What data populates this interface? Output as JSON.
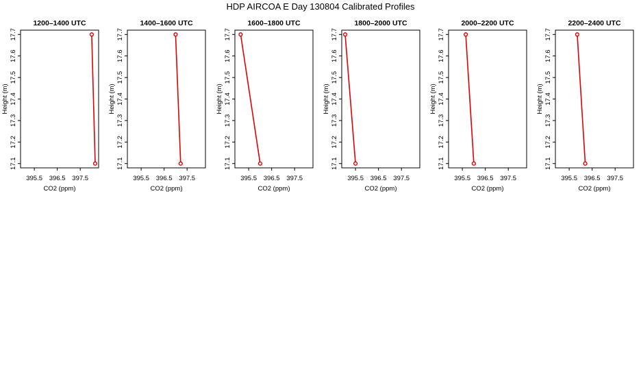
{
  "figure": {
    "title": "HDP AIRCOA E  Day 130804  Calibrated Profiles"
  },
  "chart_data": [
    {
      "type": "line",
      "title": "1200–1400 UTC",
      "xlabel": "CO2 (ppm)",
      "ylabel": "Height (m)",
      "xlim": [
        394.9,
        398.3
      ],
      "ylim": [
        17.08,
        17.72
      ],
      "xticks": [
        "395.5",
        "396.5",
        "397.5"
      ],
      "yticks": [
        "17.1",
        "17.2",
        "17.3",
        "17.4",
        "17.5",
        "17.6",
        "17.7"
      ],
      "series": [
        {
          "color": "#e00000",
          "points": [
            {
              "x": 398.0,
              "y": 17.7
            },
            {
              "x": 398.15,
              "y": 17.1
            }
          ]
        }
      ]
    },
    {
      "type": "line",
      "title": "1400–1600 UTC",
      "xlabel": "CO2 (ppm)",
      "ylabel": "Height (m)",
      "xlim": [
        394.9,
        398.3
      ],
      "ylim": [
        17.08,
        17.72
      ],
      "xticks": [
        "395.5",
        "396.5",
        "397.5"
      ],
      "yticks": [
        "17.1",
        "17.2",
        "17.3",
        "17.4",
        "17.5",
        "17.6",
        "17.7"
      ],
      "series": [
        {
          "color": "#e00000",
          "points": [
            {
              "x": 397.0,
              "y": 17.7
            },
            {
              "x": 397.22,
              "y": 17.1
            }
          ]
        }
      ]
    },
    {
      "type": "line",
      "title": "1600–1800 UTC",
      "xlabel": "CO2 (ppm)",
      "ylabel": "Height (m)",
      "xlim": [
        394.9,
        398.3
      ],
      "ylim": [
        17.08,
        17.72
      ],
      "xticks": [
        "395.5",
        "396.5",
        "397.5"
      ],
      "yticks": [
        "17.1",
        "17.2",
        "17.3",
        "17.4",
        "17.5",
        "17.6",
        "17.7"
      ],
      "series": [
        {
          "color": "#e00000",
          "points": [
            {
              "x": 395.15,
              "y": 17.7
            },
            {
              "x": 396.0,
              "y": 17.1
            }
          ]
        }
      ]
    },
    {
      "type": "line",
      "title": "1800–2000 UTC",
      "xlabel": "CO2 (ppm)",
      "ylabel": "Height (m)",
      "xlim": [
        394.9,
        398.3
      ],
      "ylim": [
        17.08,
        17.72
      ],
      "xticks": [
        "395.5",
        "396.5",
        "397.5"
      ],
      "yticks": [
        "17.1",
        "17.2",
        "17.3",
        "17.4",
        "17.5",
        "17.6",
        "17.7"
      ],
      "series": [
        {
          "color": "#e00000",
          "points": [
            {
              "x": 395.05,
              "y": 17.7
            },
            {
              "x": 395.5,
              "y": 17.1
            }
          ]
        }
      ]
    },
    {
      "type": "line",
      "title": "2000–2200 UTC",
      "xlabel": "CO2 (ppm)",
      "ylabel": "Height (m)",
      "xlim": [
        394.9,
        398.3
      ],
      "ylim": [
        17.08,
        17.72
      ],
      "xticks": [
        "395.5",
        "396.5",
        "397.5"
      ],
      "yticks": [
        "17.1",
        "17.2",
        "17.3",
        "17.4",
        "17.5",
        "17.6",
        "17.7"
      ],
      "series": [
        {
          "color": "#e00000",
          "points": [
            {
              "x": 395.65,
              "y": 17.7
            },
            {
              "x": 396.0,
              "y": 17.1
            }
          ]
        }
      ]
    },
    {
      "type": "line",
      "title": "2200–2400 UTC",
      "xlabel": "CO2 (ppm)",
      "ylabel": "Height (m)",
      "xlim": [
        394.9,
        398.3
      ],
      "ylim": [
        17.08,
        17.72
      ],
      "xticks": [
        "395.5",
        "396.5",
        "397.5"
      ],
      "yticks": [
        "17.1",
        "17.2",
        "17.3",
        "17.4",
        "17.5",
        "17.6",
        "17.7"
      ],
      "series": [
        {
          "color": "#e00000",
          "points": [
            {
              "x": 395.85,
              "y": 17.7
            },
            {
              "x": 396.2,
              "y": 17.1
            }
          ]
        }
      ]
    }
  ]
}
